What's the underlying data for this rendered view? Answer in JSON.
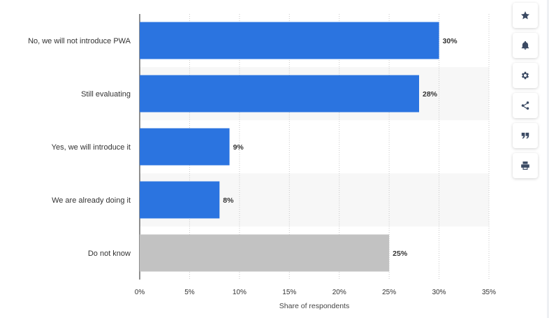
{
  "chart_data": {
    "type": "bar",
    "orientation": "horizontal",
    "categories": [
      "No, we will not introduce PWA",
      "Still evaluating",
      "Yes, we will introduce it",
      "We are already doing it",
      "Do not know"
    ],
    "values": [
      30,
      28,
      9,
      8,
      25
    ],
    "value_labels": [
      "30%",
      "28%",
      "9%",
      "8%",
      "25%"
    ],
    "bar_colors": [
      "#2b74e0",
      "#2b74e0",
      "#2b74e0",
      "#2b74e0",
      "#c2c2c2"
    ],
    "xlim": [
      0,
      35
    ],
    "xticks": [
      0,
      5,
      10,
      15,
      20,
      25,
      30,
      35
    ],
    "xtick_labels": [
      "0%",
      "5%",
      "10%",
      "15%",
      "20%",
      "25%",
      "30%",
      "35%"
    ],
    "xlabel": "Share of respondents",
    "ylabel": "",
    "title": "",
    "grid": true
  },
  "toolbar": {
    "buttons": [
      {
        "name": "favorite-button",
        "icon": "star-icon"
      },
      {
        "name": "notification-button",
        "icon": "bell-icon"
      },
      {
        "name": "settings-button",
        "icon": "gear-icon"
      },
      {
        "name": "share-button",
        "icon": "share-icon"
      },
      {
        "name": "cite-button",
        "icon": "quote-icon"
      },
      {
        "name": "print-button",
        "icon": "printer-icon"
      }
    ]
  }
}
